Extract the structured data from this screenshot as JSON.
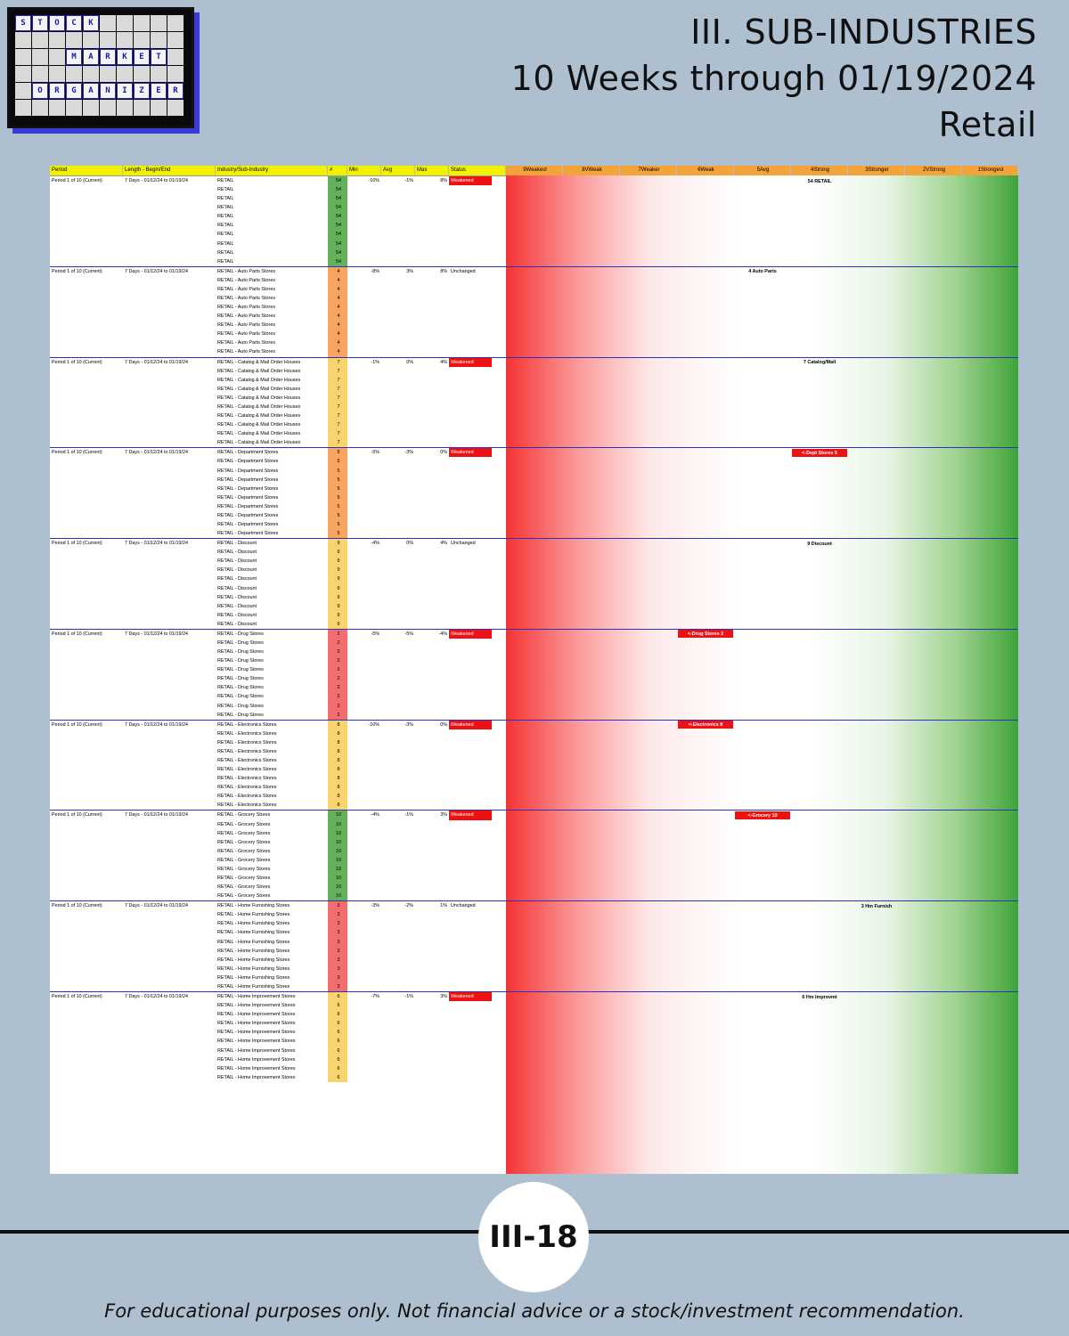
{
  "logo": {
    "words": [
      "STOCK",
      "MARKET",
      "ORGANIZER"
    ]
  },
  "title": {
    "line1": "III. SUB-INDUSTRIES",
    "line2": "10 Weeks through 01/19/2024",
    "line3": "Retail"
  },
  "table": {
    "headers": [
      "Period",
      "Length - Begin/End",
      "Industry/Sub-Industry",
      "#",
      "Min",
      "Avg",
      "Max",
      "Status",
      "9Weakest",
      "8VWeak",
      "7Weaker",
      "6Weak",
      "5Avg",
      "4Strong",
      "3Stronger",
      "2VStrong",
      "1Strongest"
    ],
    "rows": [
      [
        "Period 1 of 10 (Current)",
        "7 Days - 01/12/24 to 01/19/24",
        "RETAIL",
        "54",
        "-10%",
        "-1%",
        "8%",
        "Weakened",
        "54 RETAIL",
        "4Strong"
      ],
      [
        "Period 1 of 10 (Current)",
        "7 Days - 01/12/24 to 01/19/24",
        "RETAIL - Auto Parts Stores",
        "4",
        "-8%",
        "3%",
        "8%",
        "Unchanged",
        "4 Auto Parts",
        "5Avg"
      ],
      [
        "Period 1 of 10 (Current)",
        "7 Days - 01/12/24 to 01/19/24",
        "RETAIL - Catalog & Mail Order Houses",
        "7",
        "-1%",
        "0%",
        "4%",
        "Weakened",
        "7 Catalog/Mail",
        "4Strong"
      ],
      [
        "Period 1 of 10 (Current)",
        "7 Days - 01/12/24 to 01/19/24",
        "RETAIL - Department Stores",
        "5",
        "-5%",
        "-3%",
        "0%",
        "Weakened",
        "<-Dept Stores 5",
        "4Strong"
      ],
      [
        "Period 1 of 10 (Current)",
        "7 Days - 01/12/24 to 01/19/24",
        "RETAIL - Discount",
        "9",
        "-4%",
        "0%",
        "4%",
        "Unchanged",
        "9 Discount",
        "4Strong"
      ],
      [
        "Period 1 of 10 (Current)",
        "7 Days - 01/12/24 to 01/19/24",
        "RETAIL - Drug Stores",
        "2",
        "-5%",
        "-5%",
        "-4%",
        "Weakened",
        "<-Drug Stores 2",
        "6Weak"
      ],
      [
        "Period 1 of 10 (Current)",
        "7 Days - 01/12/24 to 01/19/24",
        "RETAIL - Electronics Stores",
        "8",
        "-10%",
        "-3%",
        "0%",
        "Weakened",
        "<-Electronics 8",
        "6Weak"
      ],
      [
        "Period 1 of 10 (Current)",
        "7 Days - 01/12/24 to 01/19/24",
        "RETAIL - Grocery Stores",
        "10",
        "-4%",
        "-1%",
        "3%",
        "Weakened",
        "<-Grocery 10",
        "5Avg"
      ],
      [
        "Period 1 of 10 (Current)",
        "7 Days - 01/12/24 to 01/19/24",
        "RETAIL - Home Furnishing Stores",
        "3",
        "-3%",
        "-2%",
        "1%",
        "Unchanged",
        "3 Hm Furnish",
        "3Stronger"
      ],
      [
        "Period 1 of 10 (Current)",
        "7 Days - 01/12/24 to 01/19/24",
        "RETAIL - Home Improvement Stores",
        "6",
        "-7%",
        "-1%",
        "3%",
        "Weakened",
        "6 Hm Improvmt",
        "4Strong"
      ]
    ]
  },
  "groups": [
    {
      "name": "RETAIL",
      "count": "54"
    },
    {
      "name": "RETAIL - Auto Parts Stores",
      "count": "4"
    },
    {
      "name": "RETAIL - Catalog & Mail Order Houses",
      "count": "7"
    },
    {
      "name": "RETAIL - Department Stores",
      "count": "5"
    },
    {
      "name": "RETAIL - Discount",
      "count": "9"
    },
    {
      "name": "RETAIL - Drug Stores",
      "count": "2"
    },
    {
      "name": "RETAIL - Electronics Stores",
      "count": "8"
    },
    {
      "name": "RETAIL - Grocery Stores",
      "count": "10"
    },
    {
      "name": "RETAIL - Home Furnishing Stores",
      "count": "3"
    },
    {
      "name": "RETAIL - Home Improvement Stores",
      "count": "6"
    }
  ],
  "page_number": "III-18",
  "disclaimer": "For educational purposes only. Not financial advice or a stock/investment recommendation."
}
